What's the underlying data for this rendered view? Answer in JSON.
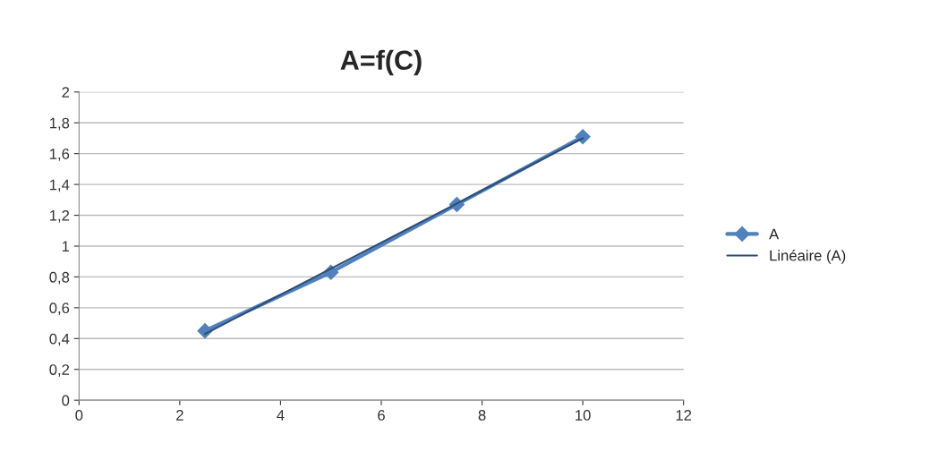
{
  "chart_data": {
    "type": "line",
    "title": "A=f(C)",
    "series": [
      {
        "name": "A",
        "color": "#4f81bd",
        "x": [
          2.5,
          5,
          7.5,
          10
        ],
        "values": [
          0.45,
          0.83,
          1.27,
          1.71
        ],
        "marker": "diamond"
      },
      {
        "name": "Linéaire (A)",
        "color": "#2c4d75",
        "x": [
          2.5,
          10
        ],
        "values": [
          0.43,
          1.7
        ],
        "marker": "none"
      }
    ],
    "xlim": [
      0,
      12
    ],
    "xticks": [
      0,
      2,
      4,
      6,
      8,
      10,
      12
    ],
    "ylim": [
      0,
      2
    ],
    "yticks": [
      0,
      {
        "value": 0.2,
        "label": "0,2"
      },
      {
        "value": 0.4,
        "label": "0,4"
      },
      {
        "value": 0.6,
        "label": "0,6"
      },
      {
        "value": 0.8,
        "label": "0,8"
      },
      1,
      {
        "value": 1.2,
        "label": "1,2"
      },
      {
        "value": 1.4,
        "label": "1,4"
      },
      {
        "value": 1.6,
        "label": "1,6"
      },
      {
        "value": 1.8,
        "label": "1,8"
      },
      2
    ],
    "grid": "y",
    "legend": "right",
    "line_style": "solid"
  }
}
